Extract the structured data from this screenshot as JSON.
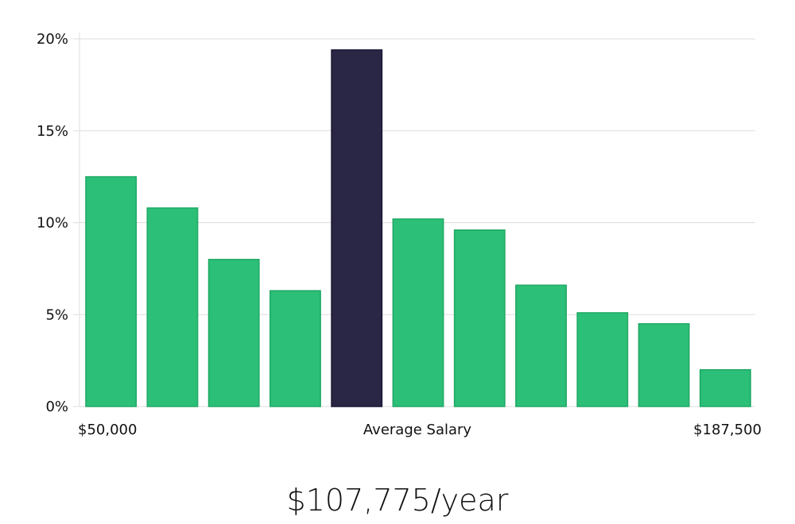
{
  "chart_data": {
    "type": "bar",
    "values": [
      12.5,
      10.8,
      8.0,
      6.3,
      19.4,
      10.2,
      9.6,
      6.6,
      5.1,
      4.5,
      2.0
    ],
    "highlight_index": 4,
    "ylim": [
      0,
      20
    ],
    "yticks": [
      {
        "value": 0,
        "label": "0%"
      },
      {
        "value": 5,
        "label": "5%"
      },
      {
        "value": 10,
        "label": "10%"
      },
      {
        "value": 15,
        "label": "15%"
      },
      {
        "value": 20,
        "label": "20%"
      }
    ],
    "x_axis_labels": {
      "left": "$50,000",
      "center": "Average Salary",
      "right": "$187,500"
    },
    "grid": true,
    "legend": "none",
    "colors": {
      "bar": "#2bbf77",
      "bar_edge": "#22a866",
      "highlight": "#2a2645",
      "grid": "#dddddd"
    }
  },
  "average_salary": "$107,775/year"
}
